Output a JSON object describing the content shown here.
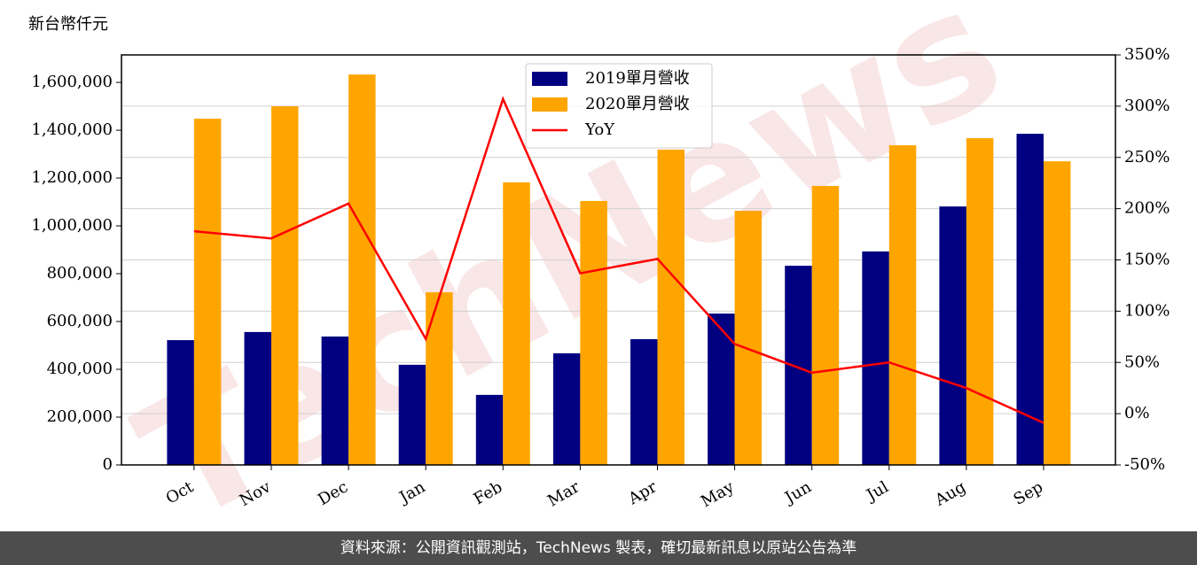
{
  "chart_data": {
    "type": "bar",
    "unit_label": "新台幣仟元",
    "watermark": "TechNews",
    "categories": [
      "Oct",
      "Nov",
      "Dec",
      "Jan",
      "Feb",
      "Mar",
      "Apr",
      "May",
      "Jun",
      "Jul",
      "Aug",
      "Sep"
    ],
    "series": [
      {
        "name": "2019單月營收",
        "type": "bar",
        "color": "#000080",
        "values": [
          522000,
          556000,
          537000,
          419000,
          293000,
          467000,
          526000,
          633000,
          833000,
          893000,
          1081000,
          1385000
        ]
      },
      {
        "name": "2020單月營收",
        "type": "bar",
        "color": "#ffa500",
        "values": [
          1448000,
          1500000,
          1633000,
          722000,
          1182000,
          1104000,
          1319000,
          1063000,
          1167000,
          1337000,
          1367000,
          1270000
        ]
      },
      {
        "name": "YoY",
        "type": "line",
        "axis": "y2",
        "color": "#ff0000",
        "values": [
          178,
          171,
          205,
          73,
          307,
          137,
          151,
          68,
          40,
          50,
          25,
          -9
        ]
      }
    ],
    "ylim": [
      0,
      1715000
    ],
    "yticks": [
      0,
      {
        "value": 200000,
        "label": "200,000"
      },
      {
        "value": 400000,
        "label": "400,000"
      },
      {
        "value": 600000,
        "label": "600,000"
      },
      {
        "value": 800000,
        "label": "800,000"
      },
      {
        "value": 1000000,
        "label": "1,000,000"
      },
      {
        "value": 1200000,
        "label": "1,200,000"
      },
      {
        "value": 1400000,
        "label": "1,400,000"
      },
      {
        "value": 1600000,
        "label": "1,600,000"
      }
    ],
    "y2lim": [
      -50,
      350
    ],
    "y2ticks": [
      {
        "value": -50,
        "label": "-50%"
      },
      {
        "value": 0,
        "label": "0%"
      },
      {
        "value": 50,
        "label": "50%"
      },
      {
        "value": 100,
        "label": "100%"
      },
      {
        "value": 150,
        "label": "150%"
      },
      {
        "value": 200,
        "label": "200%"
      },
      {
        "value": 250,
        "label": "250%"
      },
      {
        "value": 300,
        "label": "300%"
      },
      {
        "value": 350,
        "label": "350%"
      }
    ],
    "grid": true,
    "legend": "upper center",
    "footer": "資料來源：公開資訊觀測站，TechNews 製表，確切最新訊息以原站公告為準"
  }
}
